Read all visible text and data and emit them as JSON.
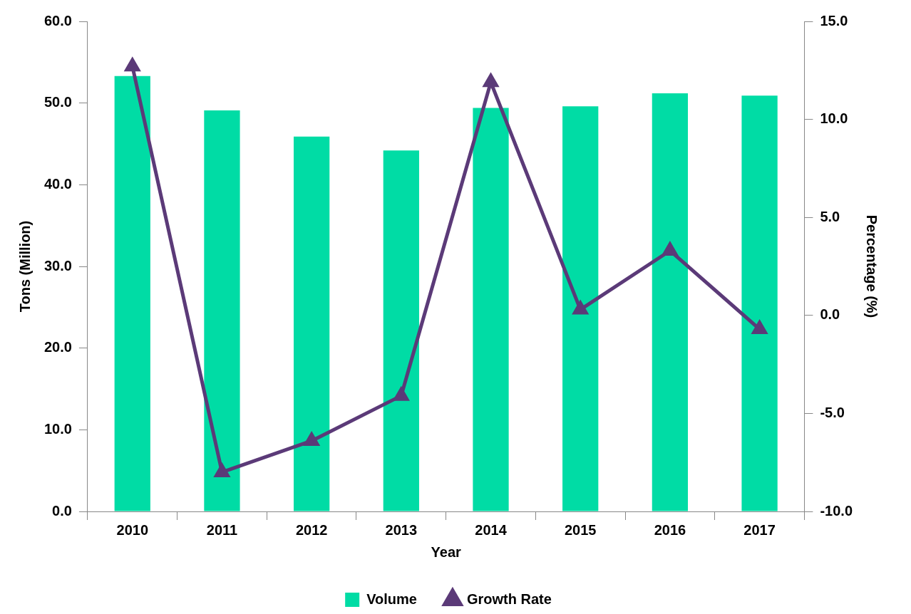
{
  "chart_data": {
    "type": "bar",
    "xlabel": "Year",
    "ylabel": "Tons (Million)",
    "y2label": "Percentage (%)",
    "categories": [
      "2010",
      "2011",
      "2012",
      "2013",
      "2014",
      "2015",
      "2016",
      "2017"
    ],
    "series": [
      {
        "name": "Volume",
        "color": "#00dca5",
        "values": [
          53.3,
          49.1,
          45.9,
          44.2,
          49.4,
          49.6,
          51.2,
          50.9
        ]
      },
      {
        "name": "Growth Rate",
        "type": "line",
        "axis": "y2",
        "color": "#5b3a78",
        "marker": "triangle",
        "values": [
          12.7,
          -8.0,
          -6.4,
          -4.1,
          11.9,
          0.3,
          3.3,
          -0.7
        ]
      }
    ],
    "ylim": [
      0,
      60
    ],
    "yticks": [
      {
        "value": 0,
        "label": "0.0"
      },
      {
        "value": 10,
        "label": "10.0"
      },
      {
        "value": 20,
        "label": "20.0"
      },
      {
        "value": 30,
        "label": "30.0"
      },
      {
        "value": 40,
        "label": "40.0"
      },
      {
        "value": 50,
        "label": "50.0"
      },
      {
        "value": 60,
        "label": "60.0"
      }
    ],
    "y2lim": [
      -10,
      15
    ],
    "y2ticks": [
      {
        "value": -10,
        "label": "-10.0"
      },
      {
        "value": -5,
        "label": "-5.0"
      },
      {
        "value": 0,
        "label": "0.0"
      },
      {
        "value": 5,
        "label": "5.0"
      },
      {
        "value": 10,
        "label": "10.0"
      },
      {
        "value": 15,
        "label": "15.0"
      }
    ],
    "grid": false,
    "legend": "bottom"
  }
}
